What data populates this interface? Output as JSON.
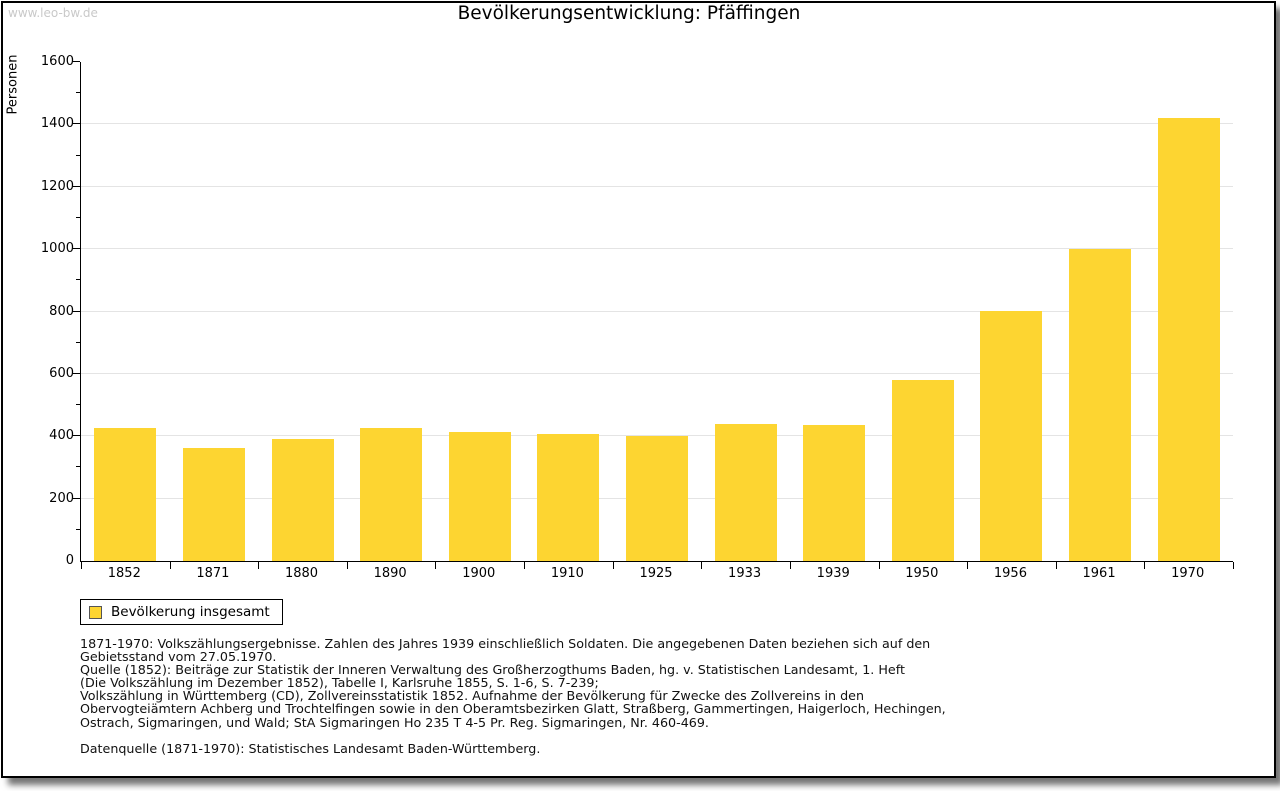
{
  "watermark": "www.leo-bw.de",
  "title": "Bevölkerungsentwicklung: Pfäffingen",
  "legend": {
    "label": "Bevölkerung insgesamt",
    "swatch_color": "#FDD531"
  },
  "chart_data": {
    "type": "bar",
    "title": "Bevölkerungsentwicklung: Pfäffingen",
    "categories": [
      "1852",
      "1871",
      "1880",
      "1890",
      "1900",
      "1910",
      "1925",
      "1933",
      "1939",
      "1950",
      "1956",
      "1961",
      "1970"
    ],
    "series": [
      {
        "name": "Bevölkerung insgesamt",
        "values": [
          426,
          362,
          391,
          425,
          414,
          406,
          401,
          440,
          437,
          582,
          801,
          999,
          1422
        ]
      }
    ],
    "xlabel": "",
    "ylabel": "Personen",
    "ylim": [
      0,
      1600
    ],
    "ytick_step": 200,
    "minor_tick_step": 100,
    "grid": true,
    "legend_position": "bottom-left",
    "bar_color": "#FDD531"
  },
  "footnotes": [
    "1871-1970: Volkszählungsergebnisse. Zahlen des Jahres 1939 einschließlich Soldaten. Die angegebenen Daten beziehen sich auf den",
    "Gebietsstand vom 27.05.1970.",
    "Quelle (1852): Beiträge zur Statistik der Inneren Verwaltung des Großherzogthums Baden, hg. v. Statistischen Landesamt, 1. Heft",
    "(Die Volkszählung im Dezember 1852), Tabelle I, Karlsruhe 1855, S. 1-6, S. 7-239;",
    "Volkszählung in Württemberg (CD), Zollvereinsstatistik 1852. Aufnahme der Bevölkerung für Zwecke des Zollvereins in den",
    "Obervogteiämtern Achberg und Trochtelfingen sowie in den Oberamtsbezirken Glatt, Straßberg, Gammertingen, Haigerloch, Hechingen,",
    "Ostrach, Sigmaringen, und Wald; StA Sigmaringen Ho 235 T 4-5 Pr. Reg. Sigmaringen, Nr. 460-469."
  ],
  "datasource": "Datenquelle (1871-1970): Statistisches Landesamt Baden-Württemberg."
}
